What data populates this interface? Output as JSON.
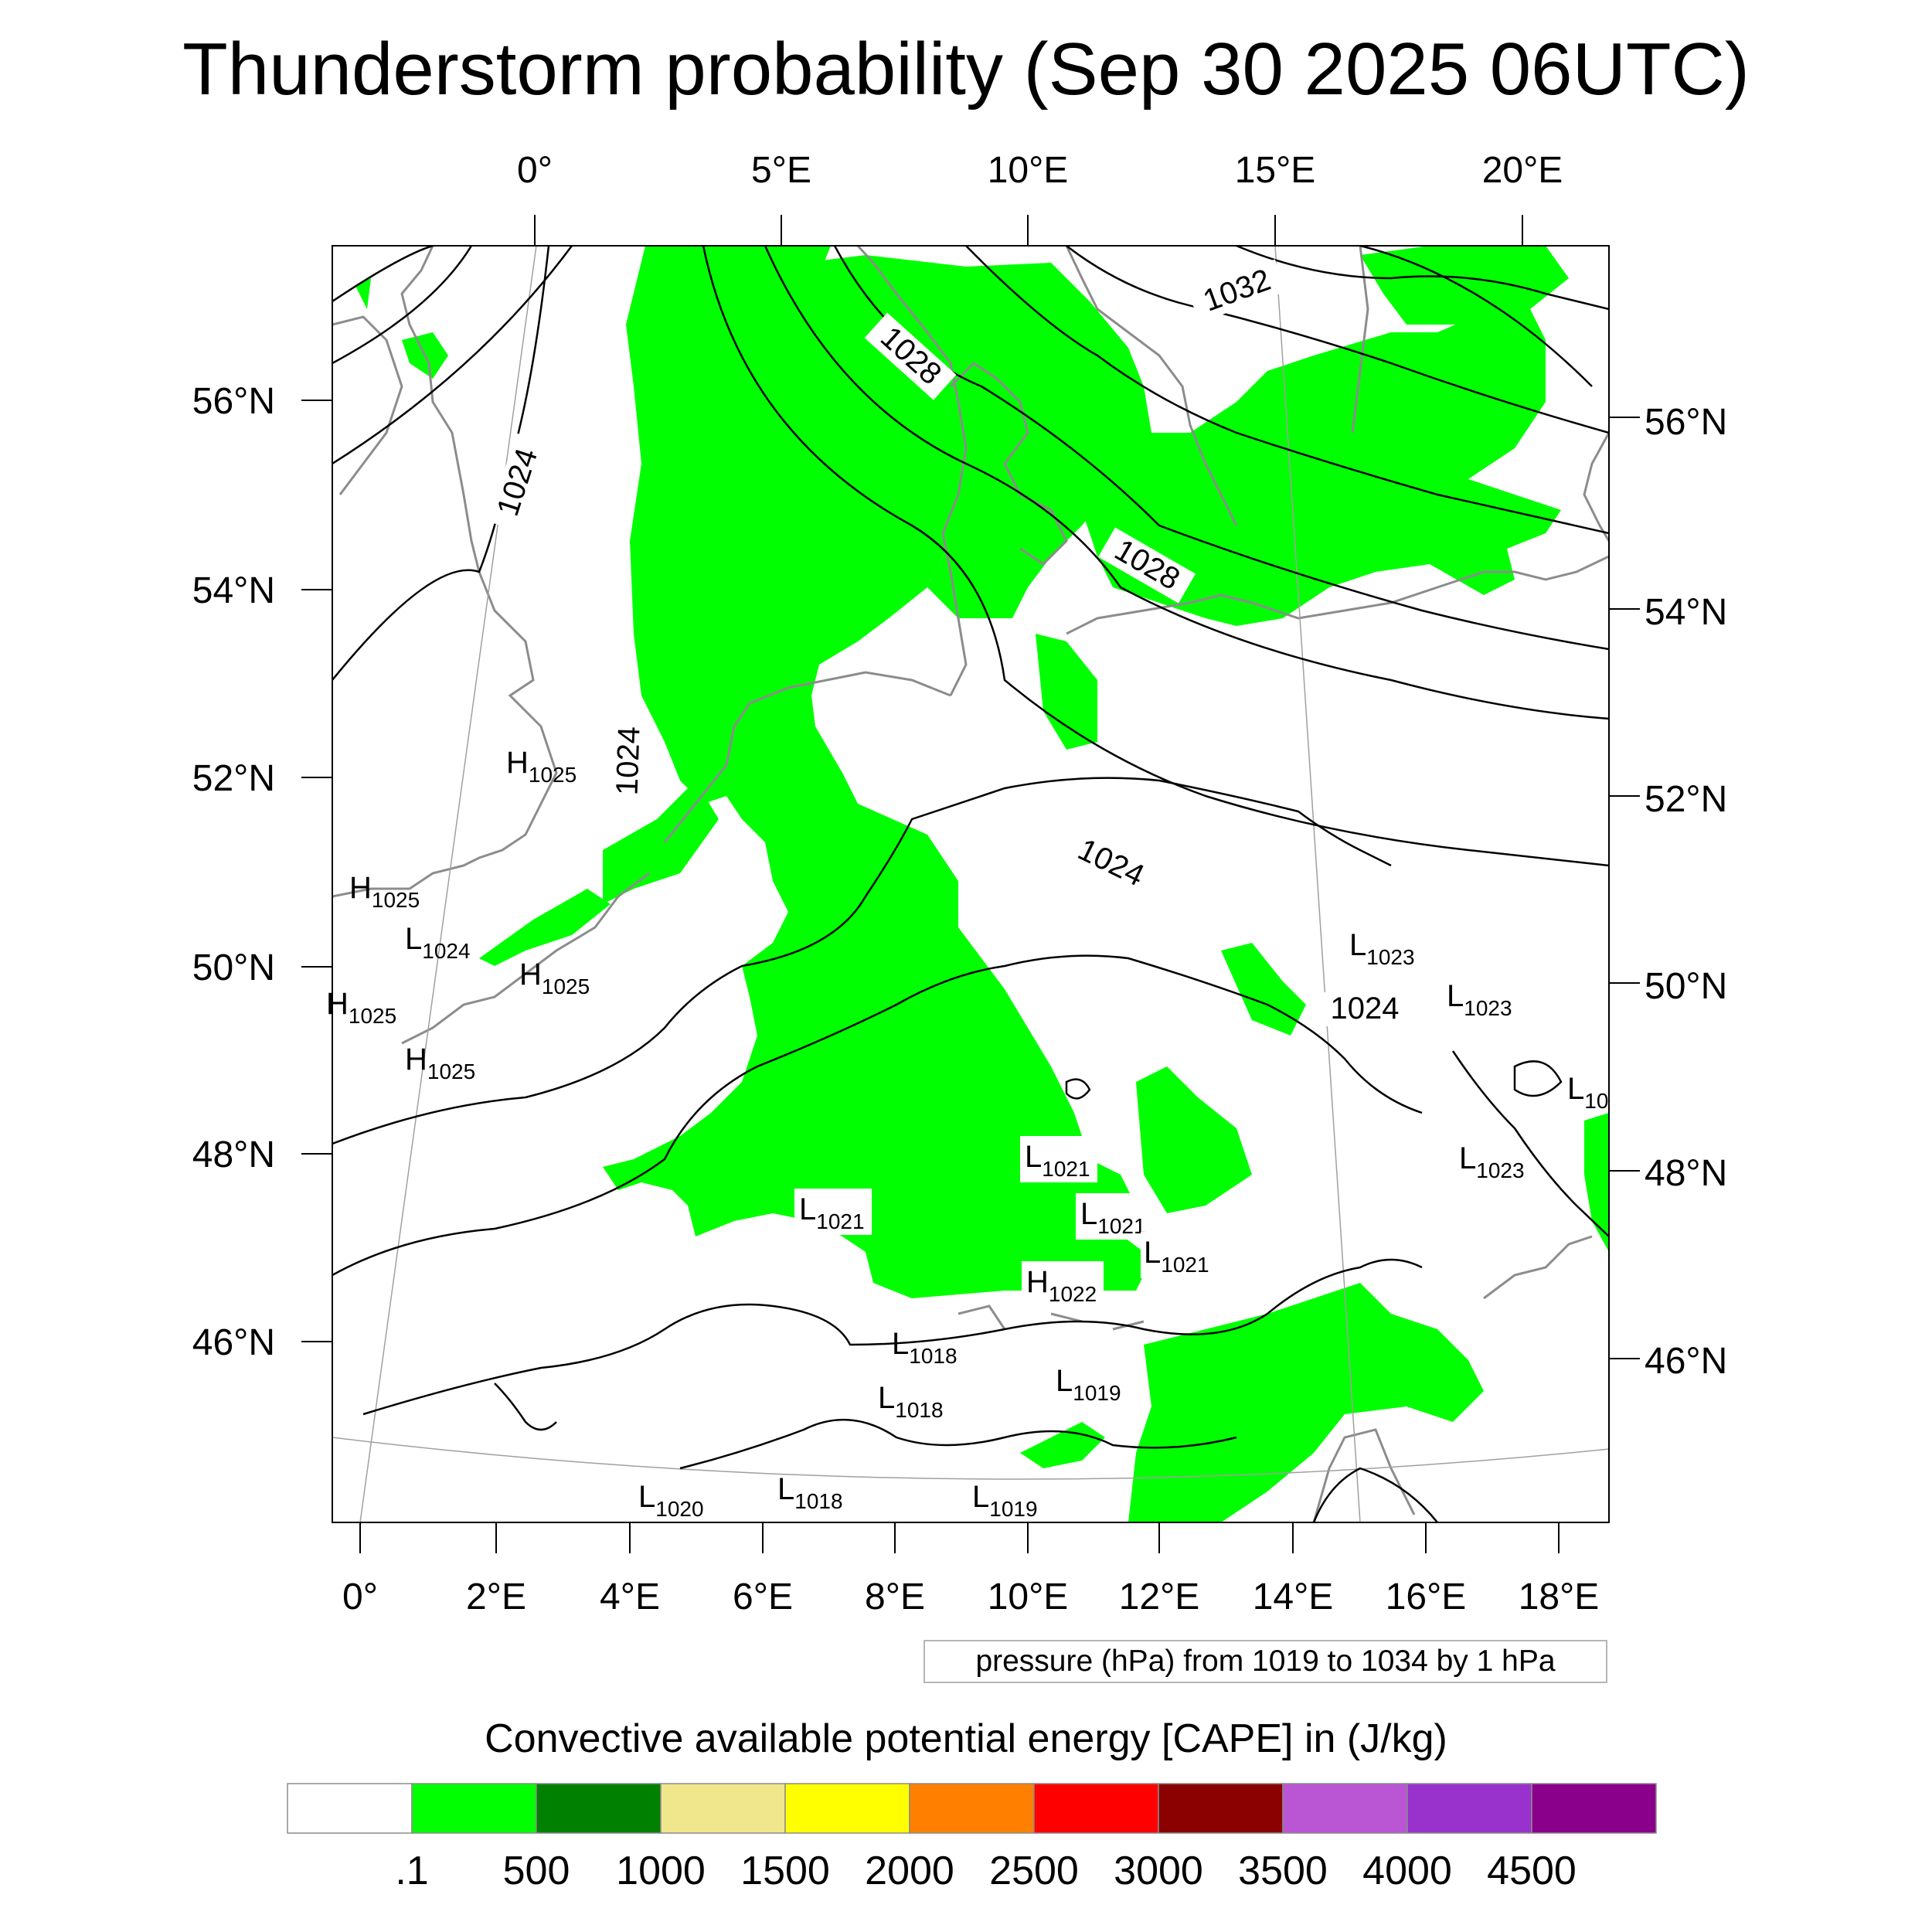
{
  "title": "Thunderstorm probability (Sep 30 2025 06UTC)",
  "pressure_note": "pressure (hPa) from 1019 to 1034 by 1 hPa",
  "colorbar": {
    "title": "Convective available potential energy [CAPE] in (J/kg)",
    "colors": [
      "#ffffff",
      "#00ff00",
      "#008000",
      "#f0e68c",
      "#ffff00",
      "#ff8000",
      "#ff0000",
      "#8b0000",
      "#ba55d3",
      "#9932cc",
      "#8b008b"
    ],
    "tick_labels": [
      ".1",
      "500",
      "1000",
      "1500",
      "2000",
      "2500",
      "3000",
      "3500",
      "4000",
      "4500"
    ]
  },
  "axes": {
    "top_lon_labels": [
      "0°",
      "5°E",
      "10°E",
      "15°E",
      "20°E"
    ],
    "bottom_lon_labels": [
      "0°",
      "2°E",
      "4°E",
      "6°E",
      "8°E",
      "10°E",
      "12°E",
      "14°E",
      "16°E",
      "18°E"
    ],
    "left_lat_labels": [
      "56°N",
      "54°N",
      "52°N",
      "50°N",
      "48°N",
      "46°N"
    ],
    "right_lat_labels": [
      "56°N",
      "54°N",
      "52°N",
      "50°N",
      "48°N",
      "46°N"
    ]
  },
  "isobar_labels": [
    "1032",
    "1028",
    "1028",
    "1024",
    "1024",
    "1024",
    "1024"
  ],
  "pressure_centers": [
    {
      "type": "H",
      "value": "1025"
    },
    {
      "type": "H",
      "value": "1025"
    },
    {
      "type": "L",
      "value": "1024"
    },
    {
      "type": "H",
      "value": "1025"
    },
    {
      "type": "H",
      "value": "1025"
    },
    {
      "type": "H",
      "value": "1025"
    },
    {
      "type": "L",
      "value": "1023"
    },
    {
      "type": "L",
      "value": "1023"
    },
    {
      "type": "L",
      "value": "1023"
    },
    {
      "type": "L",
      "value": "10"
    },
    {
      "type": "L",
      "value": "1021"
    },
    {
      "type": "L",
      "value": "1021"
    },
    {
      "type": "L",
      "value": "1021"
    },
    {
      "type": "L",
      "value": "1021"
    },
    {
      "type": "H",
      "value": "1022"
    },
    {
      "type": "L",
      "value": "1018"
    },
    {
      "type": "L",
      "value": "1018"
    },
    {
      "type": "L",
      "value": "1019"
    },
    {
      "type": "L",
      "value": "1020"
    },
    {
      "type": "L",
      "value": "1018"
    },
    {
      "type": "L",
      "value": "1019"
    }
  ]
}
